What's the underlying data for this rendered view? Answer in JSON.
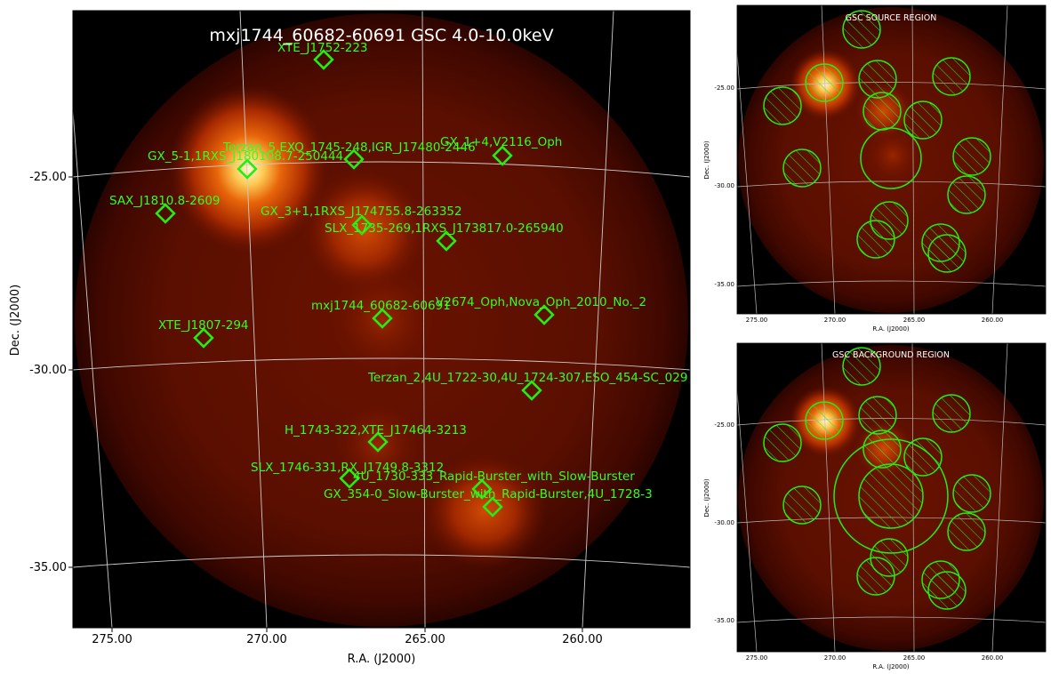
{
  "main_panel": {
    "title": "mxj1744_60682-60691 GSC 4.0-10.0keV",
    "xlabel": "R.A. (J2000)",
    "ylabel": "Dec. (J2000)",
    "xticks": [
      "275.00",
      "270.00",
      "265.00",
      "260.00"
    ],
    "yticks": [
      "-25.00",
      "-30.00",
      "-35.00"
    ],
    "sources": [
      {
        "label": "XTE_J1752-223"
      },
      {
        "label": "GX_1+4,V2116_Oph"
      },
      {
        "label": "Terzan_5,EXO_1745-248,IGR_J17480-2446"
      },
      {
        "label": "GX_5-1,1RXS_J180108.7-250444"
      },
      {
        "label": "SAX_J1810.8-2609"
      },
      {
        "label": "GX_3+1,1RXS_J174755.8-263352"
      },
      {
        "label": "SLX_1735-269,1RXS_J173817.0-265940"
      },
      {
        "label": "V2674_Oph,Nova_Oph_2010_No._2"
      },
      {
        "label": "mxj1744_60682-60691"
      },
      {
        "label": "XTE_J1807-294"
      },
      {
        "label": "Terzan_2,4U_1722-30,4U_1724-307,ESO_454-SC_029"
      },
      {
        "label": "H_1743-322,XTE_J17464-3213"
      },
      {
        "label": "SLX_1746-331,RX_J1749.8-3312"
      },
      {
        "label": "4U_1730-333_Rapid-Burster_with_Slow-Burster"
      },
      {
        "label": "GX_354-0_Slow-Burster_with_Rapid-Burster,4U_1728-3"
      }
    ]
  },
  "source_panel": {
    "title": "GSC SOURCE REGION",
    "xlabel": "R.A. (J2000)",
    "ylabel": "Dec. (J2000)",
    "xticks": [
      "275.00",
      "270.00",
      "265.00",
      "260.00"
    ],
    "yticks": [
      "-25.00",
      "-30.00",
      "-35.00"
    ]
  },
  "background_panel": {
    "title": "GSC BACKGROUND REGION",
    "xlabel": "R.A. (J2000)",
    "ylabel": "Dec. (J2000)",
    "xticks": [
      "275.00",
      "270.00",
      "265.00",
      "260.00"
    ],
    "yticks": [
      "-25.00",
      "-30.00",
      "-35.00"
    ]
  },
  "colors": {
    "marker": "#22ee11",
    "label": "#33ff22",
    "grid": "#dddddd"
  }
}
